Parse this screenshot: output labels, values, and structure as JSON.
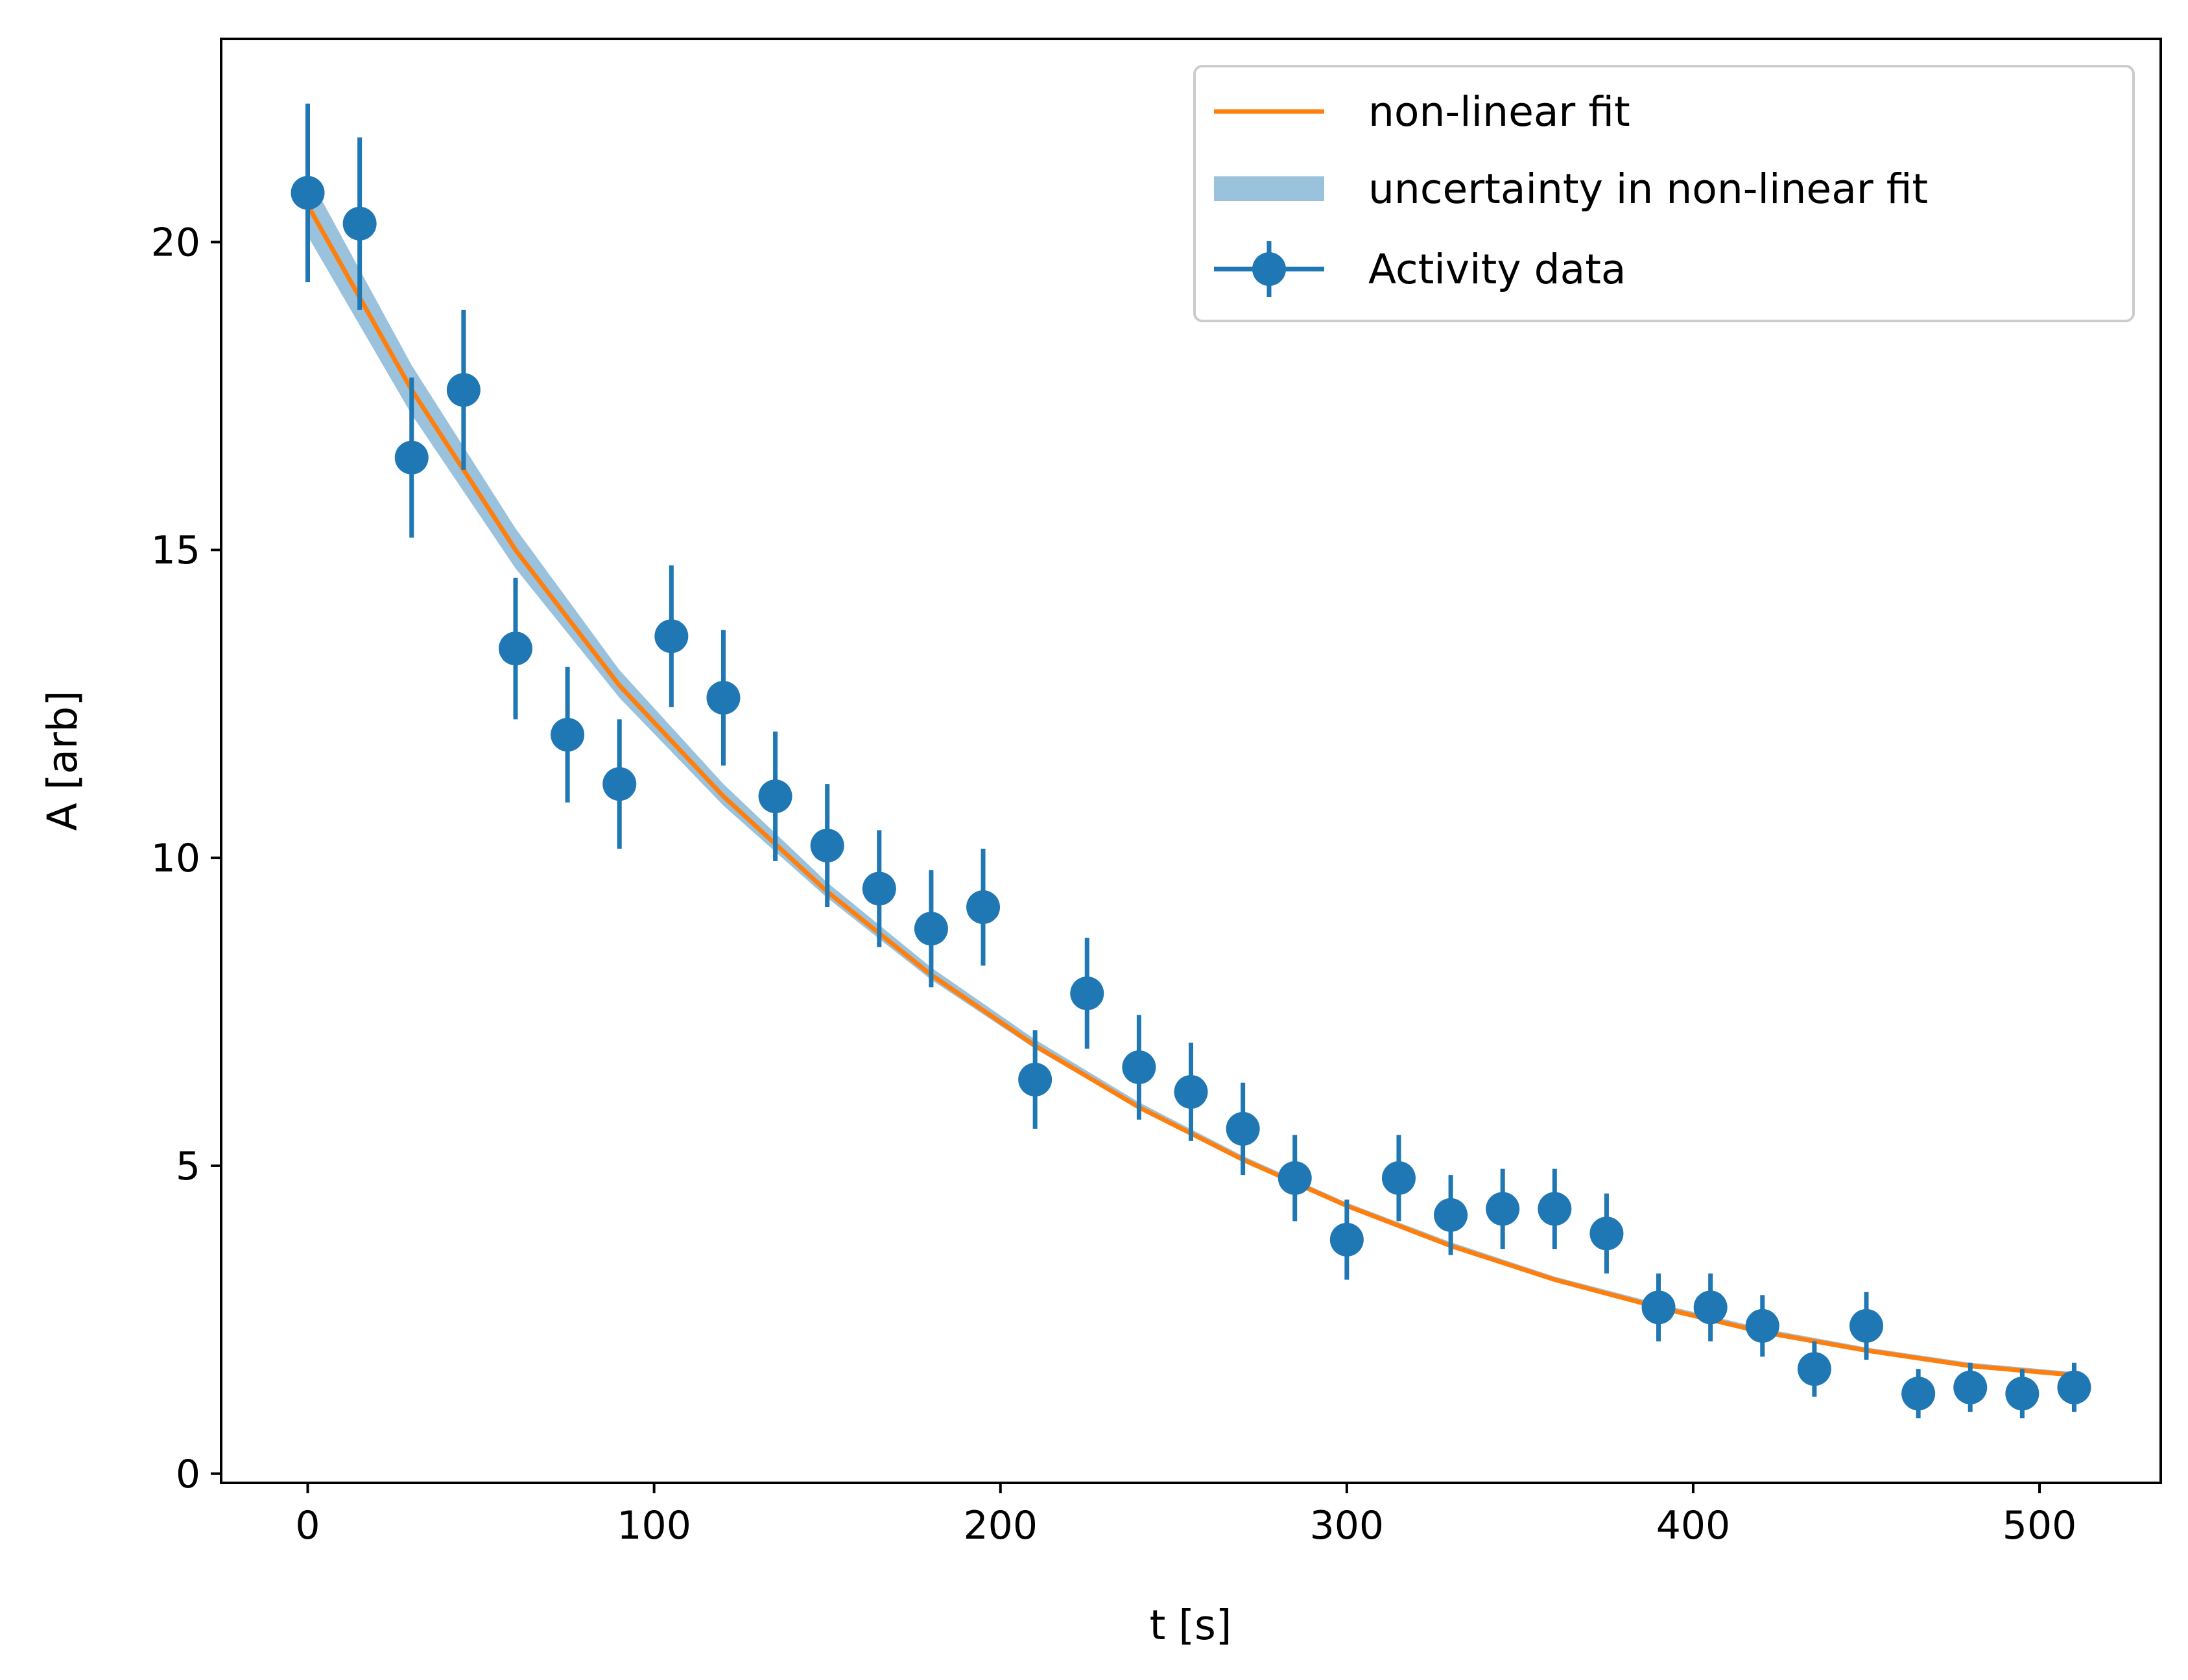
{
  "chart_data": {
    "type": "scatter",
    "title": "",
    "xlabel": "t [s]",
    "ylabel": "A [arb]",
    "xlim": [
      -25,
      535
    ],
    "ylim": [
      -0.15,
      23.3
    ],
    "x_ticks": [
      0,
      100,
      200,
      300,
      400,
      500
    ],
    "x_tick_labels": [
      "0",
      "100",
      "200",
      "300",
      "400",
      "500"
    ],
    "y_ticks": [
      0,
      5,
      10,
      15,
      20
    ],
    "y_tick_labels": [
      "0",
      "5",
      "10",
      "15",
      "20"
    ],
    "grid": false,
    "legend_position": "top-right",
    "legend": [
      {
        "label": "non-linear fit",
        "kind": "line",
        "color": "#ff7f0e"
      },
      {
        "label": "uncertainty in non-linear fit",
        "kind": "band",
        "color": "#1f77b4"
      },
      {
        "label": "Activity data",
        "kind": "errorbar",
        "color": "#1f77b4"
      }
    ],
    "series": [
      {
        "name": "Activity data",
        "kind": "errorbar",
        "color": "#1f77b4",
        "x": [
          0,
          15,
          30,
          45,
          60,
          75,
          90,
          105,
          120,
          135,
          150,
          165,
          180,
          195,
          210,
          225,
          240,
          255,
          270,
          285,
          300,
          315,
          330,
          345,
          360,
          375,
          390,
          405,
          420,
          435,
          450,
          465,
          480,
          495,
          510
        ],
        "y": [
          20.8,
          20.3,
          16.5,
          17.6,
          13.4,
          12.0,
          11.2,
          13.6,
          12.6,
          11.0,
          10.2,
          9.5,
          8.85,
          9.2,
          6.4,
          7.8,
          6.6,
          6.2,
          5.6,
          4.8,
          3.8,
          4.8,
          4.2,
          4.3,
          4.3,
          3.9,
          2.7,
          2.7,
          2.4,
          1.7,
          2.4,
          1.3,
          1.4,
          1.3,
          1.4
        ],
        "yerr": [
          1.45,
          1.4,
          1.3,
          1.3,
          1.15,
          1.1,
          1.05,
          1.15,
          1.1,
          1.05,
          1.0,
          0.95,
          0.95,
          0.95,
          0.8,
          0.9,
          0.85,
          0.8,
          0.75,
          0.7,
          0.65,
          0.7,
          0.65,
          0.65,
          0.65,
          0.65,
          0.55,
          0.55,
          0.5,
          0.45,
          0.55,
          0.4,
          0.4,
          0.4,
          0.4
        ]
      },
      {
        "name": "non-linear fit",
        "kind": "line",
        "color": "#ff7f0e",
        "x": [
          0,
          30,
          60,
          90,
          120,
          150,
          180,
          210,
          240,
          270,
          300,
          330,
          360,
          390,
          420,
          450,
          480,
          510
        ],
        "y": [
          20.6,
          17.6,
          15.0,
          12.8,
          11.0,
          9.45,
          8.1,
          6.95,
          5.95,
          5.1,
          4.35,
          3.7,
          3.15,
          2.7,
          2.3,
          2.0,
          1.75,
          1.6
        ]
      },
      {
        "name": "uncertainty in non-linear fit",
        "kind": "band",
        "color": "#1f77b4",
        "x": [
          0,
          30,
          60,
          90,
          120,
          150,
          180,
          210,
          240,
          270,
          300,
          330,
          360,
          390,
          420,
          450,
          480,
          510
        ],
        "lower": [
          20.1,
          17.2,
          14.7,
          12.6,
          10.85,
          9.35,
          8.02,
          6.9,
          5.92,
          5.08,
          4.34,
          3.7,
          3.15,
          2.7,
          2.3,
          2.0,
          1.75,
          1.6
        ],
        "upper": [
          21.1,
          18.0,
          15.35,
          13.05,
          11.2,
          9.6,
          8.22,
          7.05,
          6.03,
          5.16,
          4.4,
          3.76,
          3.2,
          2.76,
          2.36,
          2.05,
          1.8,
          1.65
        ]
      }
    ]
  }
}
